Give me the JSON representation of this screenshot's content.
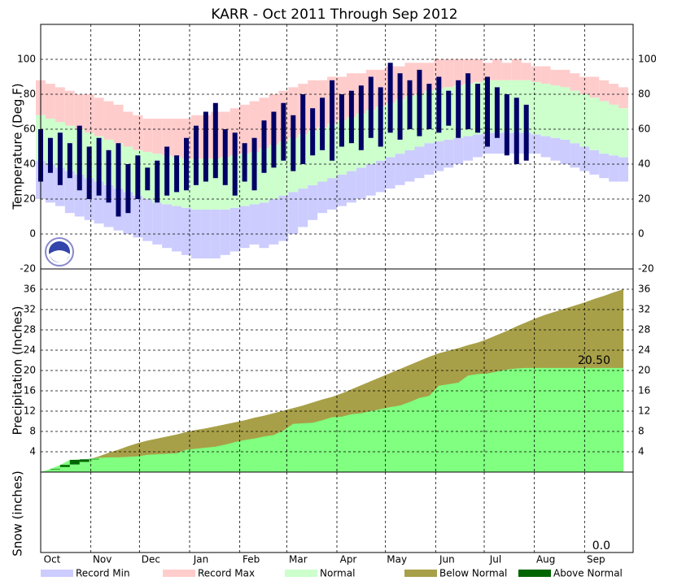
{
  "chart_data": [
    {
      "type": "bar",
      "title": "KARR - Oct 2011 Through Sep 2012",
      "y_label": "Temperature (Deg.F)",
      "x": [
        0,
        6,
        12,
        18,
        24,
        30,
        36,
        42,
        48,
        54,
        60,
        66,
        72,
        78,
        84,
        90,
        96,
        102,
        108,
        114,
        120,
        126,
        132,
        138,
        144,
        150,
        156,
        162,
        168,
        174,
        180,
        186,
        192,
        198,
        204,
        210,
        216,
        222,
        228,
        234,
        240,
        246,
        252,
        258,
        264,
        270,
        276,
        282,
        288,
        294,
        300,
        306,
        312,
        318,
        324,
        330,
        336,
        342,
        348,
        354,
        360
      ],
      "xlim": [
        0,
        366
      ],
      "xticks": [
        {
          "value": 0,
          "label": "Oct"
        },
        {
          "value": 31,
          "label": "Nov"
        },
        {
          "value": 61,
          "label": "Dec"
        },
        {
          "value": 92,
          "label": "Jan"
        },
        {
          "value": 123,
          "label": "Feb"
        },
        {
          "value": 152,
          "label": "Mar"
        },
        {
          "value": 183,
          "label": "Apr"
        },
        {
          "value": 213,
          "label": "May"
        },
        {
          "value": 244,
          "label": "Jun"
        },
        {
          "value": 274,
          "label": "Jul"
        },
        {
          "value": 305,
          "label": "Aug"
        },
        {
          "value": 336,
          "label": "Sep"
        }
      ],
      "ylim": [
        -20,
        120
      ],
      "yticks": [
        -20,
        0,
        20,
        40,
        60,
        80,
        100
      ],
      "grid": true,
      "series": [
        {
          "name": "Record Min",
          "color": "#ccccff",
          "values": [
            20,
            18,
            16,
            12,
            10,
            8,
            6,
            4,
            2,
            0,
            -2,
            -4,
            -6,
            -8,
            -10,
            -12,
            -14,
            -14,
            -14,
            -12,
            -10,
            -8,
            -6,
            -8,
            -6,
            -4,
            0,
            4,
            8,
            12,
            14,
            16,
            18,
            20,
            22,
            24,
            26,
            28,
            30,
            32,
            34,
            36,
            38,
            40,
            42,
            44,
            46,
            46,
            46,
            46,
            46,
            46,
            44,
            42,
            40,
            38,
            36,
            34,
            32,
            30,
            30
          ]
        },
        {
          "name": "Record Max",
          "color": "#ffcccc",
          "values": [
            88,
            86,
            84,
            82,
            80,
            80,
            78,
            76,
            74,
            70,
            68,
            66,
            66,
            66,
            66,
            66,
            68,
            68,
            70,
            70,
            72,
            74,
            76,
            78,
            80,
            82,
            84,
            86,
            88,
            88,
            90,
            90,
            92,
            92,
            94,
            94,
            96,
            96,
            98,
            98,
            98,
            100,
            100,
            100,
            100,
            100,
            98,
            100,
            98,
            100,
            98,
            96,
            96,
            94,
            94,
            92,
            90,
            90,
            88,
            86,
            84
          ]
        },
        {
          "name": "Normal",
          "color": "#ccffcc",
          "high": [
            68,
            66,
            64,
            62,
            60,
            58,
            56,
            54,
            52,
            50,
            48,
            47,
            46,
            45,
            44,
            43,
            43,
            43,
            43,
            44,
            45,
            46,
            47,
            49,
            51,
            53,
            55,
            57,
            59,
            61,
            63,
            65,
            67,
            69,
            71,
            73,
            75,
            77,
            79,
            80,
            82,
            83,
            84,
            85,
            86,
            87,
            88,
            88,
            88,
            88,
            88,
            87,
            86,
            85,
            84,
            82,
            80,
            78,
            76,
            74,
            72
          ],
          "low": [
            42,
            40,
            38,
            36,
            34,
            32,
            30,
            28,
            26,
            24,
            22,
            20,
            18,
            17,
            16,
            15,
            14,
            14,
            14,
            14,
            15,
            16,
            17,
            18,
            20,
            22,
            24,
            26,
            28,
            30,
            32,
            34,
            36,
            38,
            40,
            42,
            44,
            46,
            48,
            50,
            52,
            53,
            54,
            55,
            56,
            57,
            58,
            58,
            58,
            58,
            58,
            57,
            56,
            55,
            54,
            52,
            50,
            48,
            46,
            45,
            44
          ]
        },
        {
          "color": "#000066",
          "high": [
            60,
            55,
            58,
            52,
            62,
            50,
            55,
            48,
            52,
            40,
            45,
            38,
            42,
            50,
            45,
            55,
            62,
            70,
            75,
            60,
            58,
            52,
            55,
            65,
            70,
            75,
            68,
            80,
            72,
            78,
            88,
            80,
            82,
            85,
            90,
            84,
            98,
            92,
            88,
            94,
            86,
            90,
            82,
            88,
            92,
            86,
            90,
            84,
            80,
            78,
            74,
            null,
            null,
            null,
            null,
            null,
            null,
            null,
            null,
            null,
            null
          ],
          "low": [
            30,
            35,
            28,
            32,
            25,
            20,
            22,
            18,
            10,
            12,
            20,
            25,
            18,
            22,
            24,
            25,
            28,
            30,
            32,
            28,
            22,
            30,
            25,
            35,
            38,
            42,
            36,
            40,
            45,
            48,
            42,
            50,
            52,
            48,
            55,
            50,
            58,
            54,
            60,
            56,
            60,
            58,
            62,
            55,
            60,
            58,
            50,
            55,
            45,
            40,
            42,
            null,
            null,
            null,
            null,
            null,
            null,
            null,
            null,
            null,
            null
          ]
        }
      ]
    },
    {
      "type": "area",
      "y_label": "Precipitation (Inches)",
      "x": [
        0,
        6,
        12,
        18,
        24,
        30,
        36,
        42,
        48,
        54,
        60,
        66,
        72,
        78,
        84,
        90,
        96,
        102,
        108,
        114,
        120,
        126,
        132,
        138,
        144,
        150,
        156,
        162,
        168,
        174,
        180,
        186,
        192,
        198,
        204,
        210,
        216,
        222,
        228,
        234,
        240,
        246,
        252,
        258,
        264,
        270,
        276,
        282,
        288,
        294,
        300,
        306,
        312,
        318,
        324,
        330,
        336,
        342,
        348,
        354,
        360
      ],
      "ylim": [
        0,
        40
      ],
      "yticks": [
        4,
        8,
        12,
        16,
        20,
        24,
        28,
        32,
        36
      ],
      "grid": true,
      "series": [
        {
          "name": "Below Normal",
          "color": "#a8a048",
          "values": [
            0.0,
            0.5,
            1.0,
            1.5,
            2.0,
            2.5,
            3.1,
            3.8,
            4.4,
            5.1,
            5.7,
            6.2,
            6.6,
            7.0,
            7.4,
            7.9,
            8.3,
            8.6,
            9.0,
            9.4,
            9.8,
            10.2,
            10.7,
            11.1,
            11.6,
            12.1,
            12.6,
            13.1,
            13.7,
            14.3,
            14.8,
            15.5,
            16.3,
            17.1,
            17.9,
            18.7,
            19.5,
            20.3,
            21.1,
            21.9,
            22.7,
            23.4,
            23.9,
            24.4,
            25.0,
            25.5,
            26.2,
            27.0,
            27.8,
            28.7,
            29.5,
            30.3,
            31.0,
            31.6,
            32.2,
            32.8,
            33.4,
            34.1,
            34.7,
            35.4,
            36.0
          ]
        },
        {
          "color": "#80ff80",
          "values": [
            0.0,
            0.6,
            1.4,
            2.4,
            2.5,
            2.6,
            2.8,
            2.9,
            2.9,
            3.0,
            3.1,
            3.4,
            3.5,
            3.6,
            3.7,
            4.4,
            4.6,
            4.8,
            5.0,
            5.4,
            5.9,
            6.3,
            6.6,
            7.0,
            7.3,
            8.2,
            9.5,
            9.6,
            9.7,
            10.2,
            10.8,
            10.9,
            11.4,
            11.6,
            12.0,
            12.4,
            12.8,
            13.1,
            13.8,
            14.6,
            15.0,
            17.0,
            17.3,
            17.6,
            19.0,
            19.3,
            19.4,
            19.8,
            20.2,
            20.4,
            20.5,
            20.5,
            20.5,
            20.5,
            20.5,
            20.5,
            20.5,
            20.5,
            20.5,
            20.5,
            20.5
          ]
        }
      ],
      "above_normal": {
        "name": "Above Normal",
        "color": "#006400"
      },
      "annotation": "20.50"
    },
    {
      "type": "area",
      "y_label": "Snow (inches)",
      "annotation": "0.0"
    }
  ]
}
